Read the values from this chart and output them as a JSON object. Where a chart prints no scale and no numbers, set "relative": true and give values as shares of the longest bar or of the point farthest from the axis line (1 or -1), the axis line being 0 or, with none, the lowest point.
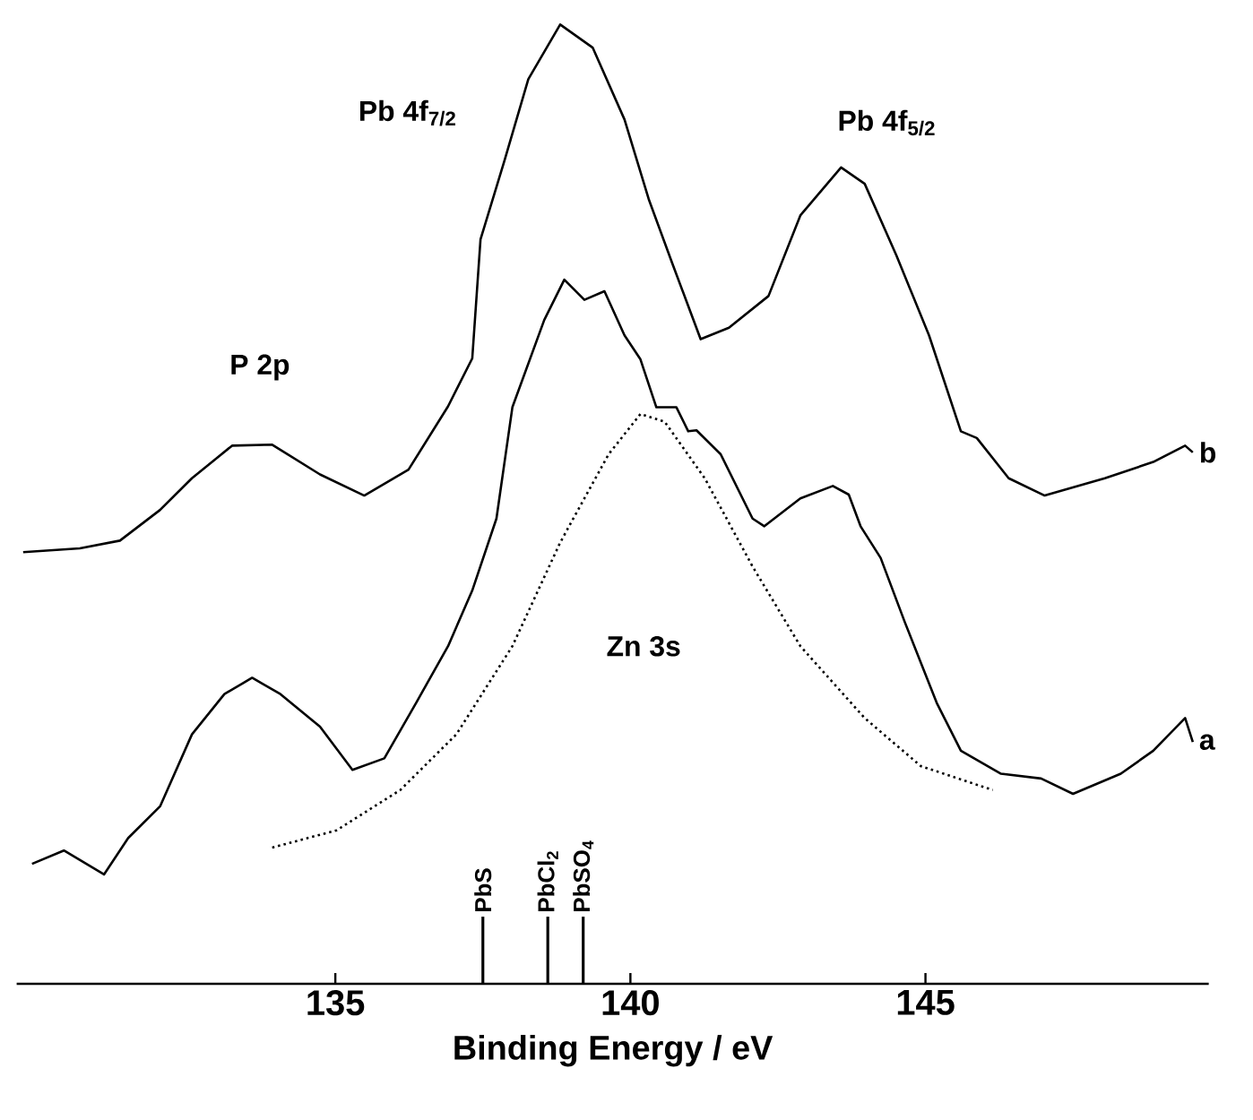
{
  "chart_data": {
    "type": "line",
    "xlabel": "Binding Energy / eV",
    "relative": true,
    "xlim": [
      129.6,
      149.8
    ],
    "xticks": [
      135,
      140,
      145
    ],
    "marker": "none",
    "line_style": "solid",
    "series": [
      {
        "name": "b",
        "color": "#000000",
        "x": [
          129.71,
          130.67,
          131.35,
          132.03,
          132.57,
          133.25,
          133.93,
          134.74,
          135.49,
          136.24,
          136.91,
          137.32,
          137.46,
          137.87,
          138.27,
          138.81,
          139.36,
          139.9,
          140.31,
          140.71,
          141.19,
          141.67,
          142.34,
          142.88,
          143.57,
          143.97,
          144.51,
          145.06,
          145.6,
          145.87,
          146.41,
          147.02,
          148.04,
          148.86,
          149.4,
          149.53
        ],
        "values": [
          0.45,
          0.454,
          0.462,
          0.494,
          0.527,
          0.561,
          0.562,
          0.531,
          0.509,
          0.536,
          0.602,
          0.652,
          0.776,
          0.859,
          0.943,
          1,
          0.976,
          0.901,
          0.818,
          0.751,
          0.672,
          0.684,
          0.717,
          0.801,
          0.851,
          0.834,
          0.759,
          0.676,
          0.576,
          0.569,
          0.527,
          0.509,
          0.527,
          0.544,
          0.561,
          0.554
        ]
      },
      {
        "name": "a",
        "color": "#000000",
        "x": [
          129.86,
          130.4,
          131.08,
          131.49,
          132.03,
          132.57,
          133.12,
          133.59,
          134.07,
          134.74,
          135.29,
          135.83,
          136.37,
          136.91,
          137.32,
          137.73,
          138.0,
          138.54,
          138.88,
          139.22,
          139.56,
          139.9,
          140.17,
          140.44,
          140.78,
          140.98,
          141.12,
          141.53,
          142.07,
          142.27,
          142.88,
          143.43,
          143.7,
          143.9,
          144.24,
          144.65,
          145.19,
          145.6,
          146.28,
          146.96,
          147.5,
          148.31,
          148.86,
          149.4,
          149.53
        ],
        "values": [
          0.125,
          0.139,
          0.114,
          0.152,
          0.185,
          0.26,
          0.302,
          0.319,
          0.302,
          0.268,
          0.223,
          0.235,
          0.293,
          0.352,
          0.41,
          0.485,
          0.601,
          0.692,
          0.734,
          0.713,
          0.722,
          0.676,
          0.651,
          0.601,
          0.601,
          0.576,
          0.577,
          0.552,
          0.485,
          0.477,
          0.506,
          0.519,
          0.51,
          0.477,
          0.444,
          0.377,
          0.293,
          0.243,
          0.219,
          0.214,
          0.198,
          0.219,
          0.243,
          0.277,
          0.252
        ]
      },
      {
        "color": "#000000",
        "line_style": "dotted",
        "x": [
          133.93,
          135.02,
          136.1,
          137.05,
          138.0,
          138.81,
          139.63,
          140.17,
          140.58,
          141.26,
          142.07,
          142.88,
          143.97,
          144.92,
          146.14
        ],
        "values": [
          0.142,
          0.16,
          0.202,
          0.26,
          0.352,
          0.46,
          0.552,
          0.594,
          0.586,
          0.527,
          0.435,
          0.352,
          0.277,
          0.227,
          0.202
        ]
      }
    ],
    "ref_lines": [
      {
        "axis": "x",
        "value": 137.5,
        "label": "PbS"
      },
      {
        "axis": "x",
        "value": 138.6,
        "label": "PbCl$_{2}$"
      },
      {
        "axis": "x",
        "value": 139.2,
        "label": "PbSO$_{4}$"
      }
    ],
    "annotations": [
      "Pb 4f$_{7/2}$",
      "Pb 4f$_{5/2}$",
      "P 2p",
      "Zn 3s"
    ]
  }
}
